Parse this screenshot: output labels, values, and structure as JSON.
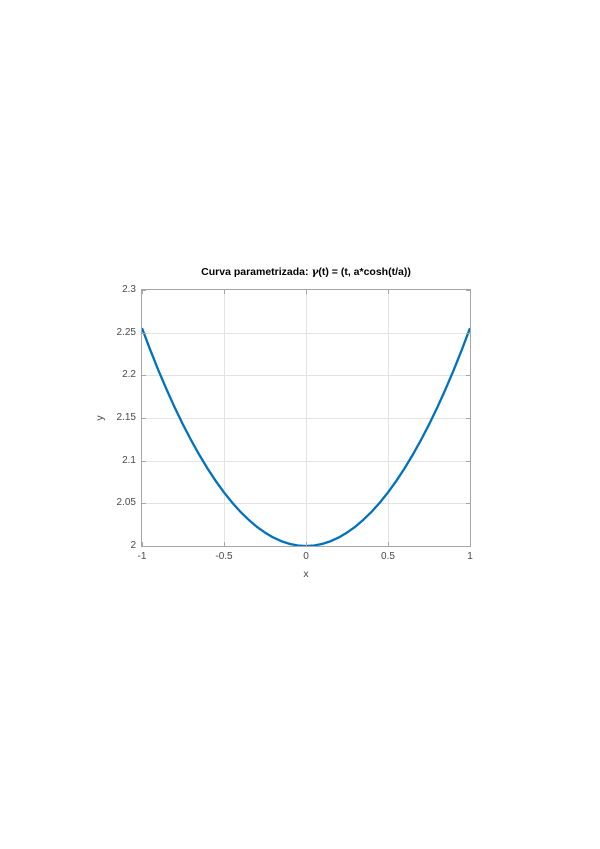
{
  "chart_data": {
    "type": "line",
    "title": "Curva parametrizada: γ(t) = (t, a*cosh(t/a))",
    "title_prefix": "Curva parametrizada: ",
    "title_gamma": "γ",
    "title_suffix": "(t) = (t, a*cosh(t/a))",
    "xlabel": "x",
    "ylabel": "y",
    "xlim": [
      -1,
      1
    ],
    "ylim": [
      2,
      2.3
    ],
    "grid": true,
    "legend": null,
    "x_ticks": [
      -1,
      -0.5,
      0,
      0.5,
      1
    ],
    "x_tick_labels": [
      "-1",
      "-0.5",
      "0",
      "0.5",
      "1"
    ],
    "y_ticks": [
      2,
      2.05,
      2.1,
      2.15,
      2.2,
      2.25,
      2.3
    ],
    "y_tick_labels": [
      "2",
      "2.05",
      "2.1",
      "2.15",
      "2.2",
      "2.25",
      "2.3"
    ],
    "series": [
      {
        "color": "#0072BD",
        "x": [
          -1,
          -0.95,
          -0.9,
          -0.85,
          -0.8,
          -0.75,
          -0.7,
          -0.65,
          -0.6,
          -0.55,
          -0.5,
          -0.45,
          -0.4,
          -0.35,
          -0.3,
          -0.25,
          -0.2,
          -0.15,
          -0.1,
          -0.05,
          0,
          0.05,
          0.1,
          0.15,
          0.2,
          0.25,
          0.3,
          0.35,
          0.4,
          0.45,
          0.5,
          0.55,
          0.6,
          0.65,
          0.7,
          0.75,
          0.8,
          0.85,
          0.9,
          0.95,
          1
        ],
        "y": [
          2.2553,
          2.2299,
          2.2059,
          2.1834,
          2.1621,
          2.1423,
          2.1238,
          2.1066,
          2.0907,
          2.0761,
          2.0628,
          2.0508,
          2.0401,
          2.0308,
          2.0225,
          2.0157,
          2.01,
          2.0056,
          2.0025,
          2.0006,
          2,
          2.0006,
          2.0025,
          2.0056,
          2.01,
          2.0157,
          2.0225,
          2.0308,
          2.0401,
          2.0508,
          2.0628,
          2.0761,
          2.0907,
          2.1066,
          2.1238,
          2.1423,
          2.1621,
          2.1834,
          2.2059,
          2.2299,
          2.2553
        ]
      }
    ],
    "colors": {
      "line": "#0072BD",
      "grid": "#e3e3e3",
      "axis_box": "#a6a6a6",
      "tick_text": "#4a4a4a",
      "title_text": "#000000"
    }
  }
}
